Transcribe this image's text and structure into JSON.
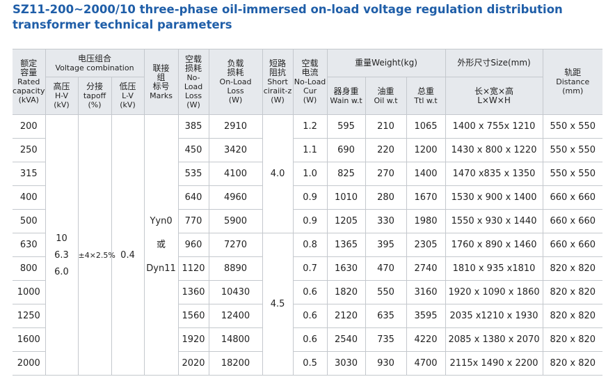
{
  "title": "SZ11-200~2000/10 three-phase oil-immersed on-load voltage regulation distribution transformer technical parameters",
  "table": {
    "header_row1": [
      [
        "额定",
        "容量",
        "Rated",
        "capacity",
        "(kVA)"
      ],
      [
        "电压组合",
        "Voltage combination"
      ],
      [
        "联接",
        "组",
        "标号",
        "Marks"
      ],
      [
        "空载",
        "损耗",
        "No-Load",
        "Loss",
        "(W)"
      ],
      [
        "负载",
        "损耗",
        "On-Load",
        "Loss",
        "(W)"
      ],
      [
        "短路",
        "阻抗",
        "Short",
        "ciraiit-z",
        "(W)"
      ],
      [
        "空载",
        "电流",
        "No-Load",
        "Cur",
        "(W)"
      ],
      [
        "重量Weight(kg)"
      ],
      [
        "外形尺寸Size(mm)"
      ],
      [
        "轨距",
        "Distance",
        "(mm)"
      ]
    ],
    "header_row2": [
      [
        "高压",
        "H-V",
        "(kV)"
      ],
      [
        "分接",
        "tapoff",
        "(%)"
      ],
      [
        "低压",
        "L-V",
        "(kV)"
      ],
      [
        "器身重",
        "Wain w.t"
      ],
      [
        "油重",
        "Oil w.t"
      ],
      [
        "总重",
        "Ttl w.t"
      ],
      [
        "长×宽×高",
        "L×W×H"
      ]
    ],
    "hv": [
      "10",
      "6.3",
      "6.0"
    ],
    "tapoff": "±4×2.5%",
    "lv": "0.4",
    "marks": [
      "Yyn0",
      "或",
      "Dyn11"
    ],
    "short": [
      "4.0",
      "4.5"
    ],
    "rows": [
      [
        "200",
        "385",
        "2910",
        "1.2",
        "595",
        "210",
        "1065",
        "1400 x 755x 1210",
        "550 x 550"
      ],
      [
        "250",
        "450",
        "3420",
        "1.1",
        "690",
        "220",
        "1200",
        "1430 x 800 x 1220",
        "550 x 550"
      ],
      [
        "315",
        "535",
        "4100",
        "1.0",
        "825",
        "270",
        "1400",
        "1470 x835 x 1350",
        "550 x 550"
      ],
      [
        "400",
        "640",
        "4960",
        "0.9",
        "1010",
        "280",
        "1670",
        "1530 x 900 x 1400",
        "660 x 660"
      ],
      [
        "500",
        "770",
        "5900",
        "0.9",
        "1205",
        "330",
        "1980",
        "1550 x 930 x 1440",
        "660 x 660"
      ],
      [
        "630",
        "960",
        "7270",
        "0.8",
        "1365",
        "395",
        "2305",
        "1760 x 890 x 1460",
        "660 x 660"
      ],
      [
        "800",
        "1120",
        "8890",
        "0.7",
        "1630",
        "470",
        "2740",
        "1810 x 935 x1810",
        "820 x 820"
      ],
      [
        "1000",
        "1360",
        "10430",
        "0.6",
        "1820",
        "550",
        "3160",
        "1920 x 1090 x 1860",
        "820 x 820"
      ],
      [
        "1250",
        "1560",
        "12400",
        "0.6",
        "2120",
        "635",
        "3595",
        "2035 x1210 x 1930",
        "820 x 820"
      ],
      [
        "1600",
        "1920",
        "14800",
        "0.6",
        "2540",
        "735",
        "4220",
        "2085 x 1380 x 2070",
        "820 x 820"
      ],
      [
        "2000",
        "2020",
        "18200",
        "0.5",
        "3030",
        "930",
        "4700",
        "2115x 1490 x 2200",
        "820 x 820"
      ]
    ]
  }
}
